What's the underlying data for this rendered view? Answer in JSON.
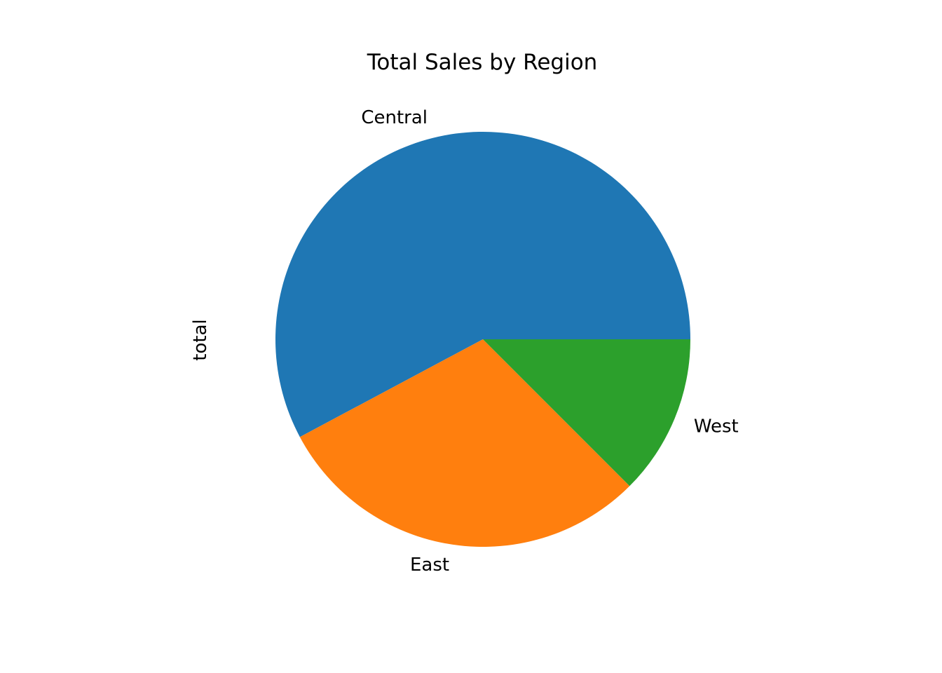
{
  "chart_data": {
    "type": "pie",
    "title": "Total Sales by Region",
    "ylabel": "total",
    "start_angle": 0,
    "direction": "counterclockwise",
    "categories": [
      "Central",
      "East",
      "West"
    ],
    "values": [
      57.8,
      29.7,
      12.5
    ],
    "colors": [
      "#1f77b4",
      "#ff7f0e",
      "#2ca02c"
    ],
    "legend": "none"
  }
}
